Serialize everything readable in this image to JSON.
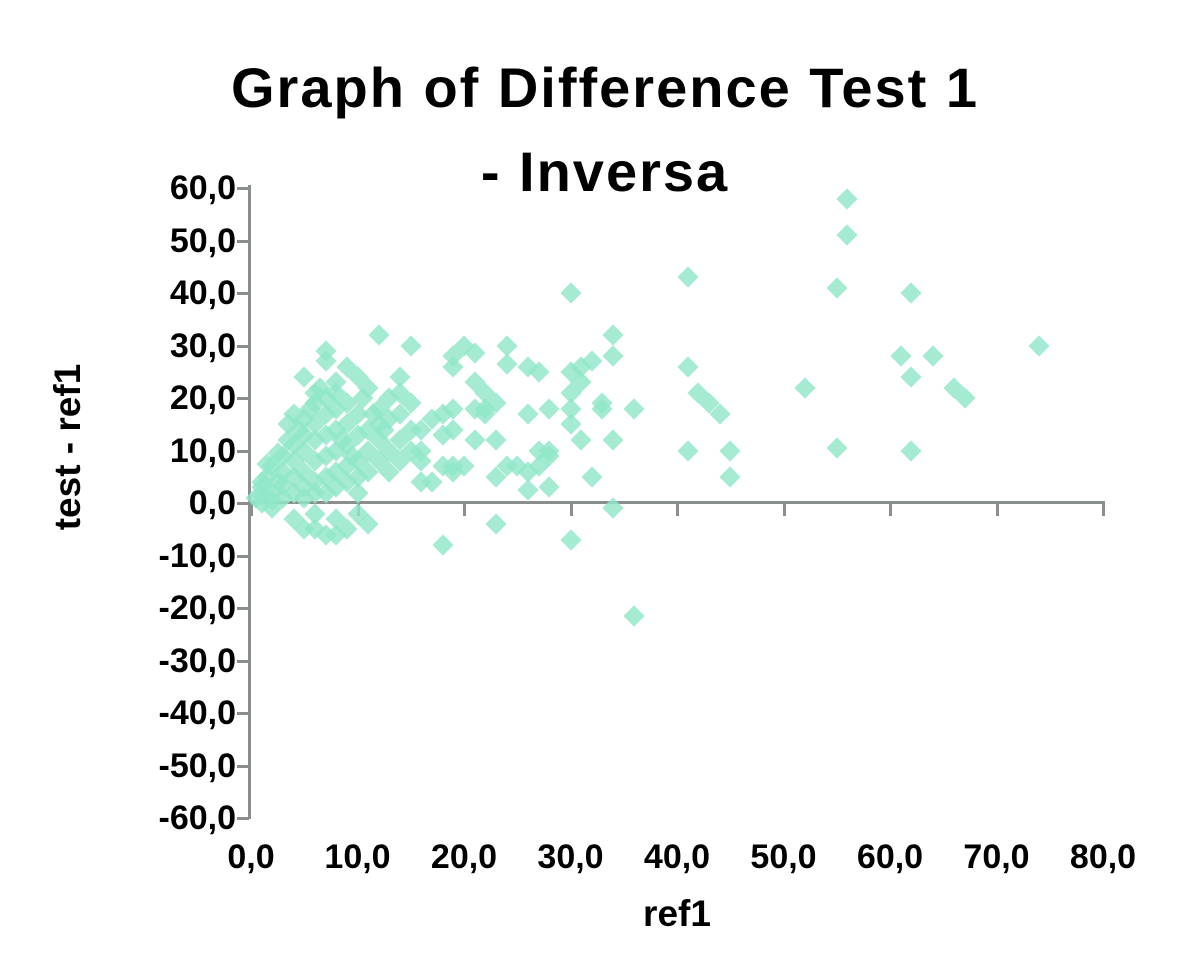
{
  "title": {
    "line1": "Graph of Difference Test 1",
    "line2": "- Inversa"
  },
  "colors": {
    "background": "#ffffff",
    "axis": "#8a8f8d",
    "marker": "#90e7c8",
    "text": "#000000"
  },
  "chart_data": {
    "type": "scatter",
    "title": "Graph of Difference Test 1 - Inversa",
    "xlabel": "ref1",
    "ylabel": "test - ref1",
    "xlim": [
      0,
      80
    ],
    "ylim": [
      -60,
      60
    ],
    "grid": false,
    "legend_position": "none",
    "marker_shape": "diamond",
    "x_ticks": [
      {
        "label": "0,0",
        "value": 0
      },
      {
        "label": "10,0",
        "value": 10
      },
      {
        "label": "20,0",
        "value": 20
      },
      {
        "label": "30,0",
        "value": 30
      },
      {
        "label": "40,0",
        "value": 40
      },
      {
        "label": "50,0",
        "value": 50
      },
      {
        "label": "60,0",
        "value": 60
      },
      {
        "label": "70,0",
        "value": 70
      },
      {
        "label": "80,0",
        "value": 80
      }
    ],
    "y_ticks": [
      {
        "label": "60,0",
        "value": 60
      },
      {
        "label": "50,0",
        "value": 50
      },
      {
        "label": "40,0",
        "value": 40
      },
      {
        "label": "30,0",
        "value": 30
      },
      {
        "label": "20,0",
        "value": 20
      },
      {
        "label": "10,0",
        "value": 10
      },
      {
        "label": "0,0",
        "value": 0
      },
      {
        "label": "-10,0",
        "value": -10
      },
      {
        "label": "-20,0",
        "value": -20
      },
      {
        "label": "-30,0",
        "value": -30
      },
      {
        "label": "-40,0",
        "value": -40
      },
      {
        "label": "-50,0",
        "value": -50
      },
      {
        "label": "-60,0",
        "value": -60
      }
    ],
    "points": [
      [
        56,
        58
      ],
      [
        56,
        51
      ],
      [
        41,
        43
      ],
      [
        55,
        41
      ],
      [
        62,
        40
      ],
      [
        30,
        40
      ],
      [
        74,
        30
      ],
      [
        61,
        28
      ],
      [
        64,
        28
      ],
      [
        62,
        24
      ],
      [
        66,
        22
      ],
      [
        67,
        20
      ],
      [
        62,
        10
      ],
      [
        55,
        10.5
      ],
      [
        52,
        22
      ],
      [
        41,
        26
      ],
      [
        42,
        21
      ],
      [
        43,
        19
      ],
      [
        44,
        17
      ],
      [
        45,
        10
      ],
      [
        45,
        5
      ],
      [
        41,
        10
      ],
      [
        34,
        32
      ],
      [
        34,
        28
      ],
      [
        32,
        27
      ],
      [
        31,
        26
      ],
      [
        30,
        25
      ],
      [
        31,
        23
      ],
      [
        30,
        21
      ],
      [
        33,
        19
      ],
      [
        36,
        18
      ],
      [
        34,
        12
      ],
      [
        30,
        15
      ],
      [
        31,
        12
      ],
      [
        33,
        18
      ],
      [
        32,
        5
      ],
      [
        28,
        18
      ],
      [
        30,
        18
      ],
      [
        28,
        10
      ],
      [
        34,
        -1
      ],
      [
        30,
        -7
      ],
      [
        36,
        -21.5
      ],
      [
        12,
        32
      ],
      [
        15,
        30
      ],
      [
        20,
        30
      ],
      [
        21,
        28.5
      ],
      [
        24,
        30
      ],
      [
        24,
        26.5
      ],
      [
        19,
        26
      ],
      [
        27,
        25
      ],
      [
        26,
        26
      ],
      [
        19,
        28
      ],
      [
        21,
        23
      ],
      [
        14,
        24
      ],
      [
        22,
        21
      ],
      [
        16,
        8
      ],
      [
        16,
        4
      ],
      [
        16,
        14
      ],
      [
        14,
        17
      ],
      [
        12,
        15
      ],
      [
        19,
        18
      ],
      [
        19,
        14
      ],
      [
        21,
        18
      ],
      [
        22,
        17
      ],
      [
        23,
        12
      ],
      [
        24,
        7
      ],
      [
        26,
        6
      ],
      [
        27,
        7
      ],
      [
        28,
        3
      ],
      [
        26,
        2.5
      ],
      [
        19,
        7
      ],
      [
        18,
        7
      ],
      [
        16,
        10
      ],
      [
        18,
        13
      ],
      [
        18,
        17
      ],
      [
        22,
        18
      ],
      [
        23,
        19
      ],
      [
        20,
        7
      ],
      [
        19,
        6
      ],
      [
        17,
        4
      ],
      [
        23,
        5
      ],
      [
        25,
        7
      ],
      [
        27,
        10
      ],
      [
        28,
        9
      ],
      [
        26,
        17
      ],
      [
        21,
        12
      ],
      [
        18,
        -8
      ],
      [
        23,
        -4
      ],
      [
        7,
        29
      ],
      [
        7,
        27
      ],
      [
        9,
        26
      ],
      [
        10,
        24
      ],
      [
        11,
        22
      ],
      [
        13,
        20
      ],
      [
        14,
        21
      ],
      [
        15,
        19
      ],
      [
        17,
        16
      ],
      [
        6,
        21
      ],
      [
        8,
        23
      ],
      [
        5,
        24
      ],
      [
        6.5,
        22
      ],
      [
        12,
        18
      ],
      [
        0.5,
        1
      ],
      [
        1,
        3
      ],
      [
        1,
        0
      ],
      [
        1.5,
        5
      ],
      [
        2,
        2
      ],
      [
        2,
        7
      ],
      [
        2.5,
        4
      ],
      [
        3,
        1
      ],
      [
        3,
        6
      ],
      [
        3,
        9
      ],
      [
        3.5,
        12
      ],
      [
        4,
        2
      ],
      [
        4,
        5
      ],
      [
        4,
        8
      ],
      [
        4,
        11
      ],
      [
        4.5,
        14
      ],
      [
        5,
        3
      ],
      [
        5,
        6
      ],
      [
        5,
        10
      ],
      [
        5,
        13
      ],
      [
        5,
        16
      ],
      [
        5,
        1
      ],
      [
        5.5,
        18
      ],
      [
        6,
        4
      ],
      [
        6,
        8
      ],
      [
        6,
        12
      ],
      [
        6,
        15
      ],
      [
        6,
        2
      ],
      [
        6,
        19
      ],
      [
        7,
        5
      ],
      [
        7,
        9
      ],
      [
        7,
        13
      ],
      [
        7,
        17
      ],
      [
        7,
        20
      ],
      [
        7,
        2
      ],
      [
        8,
        6
      ],
      [
        8,
        10
      ],
      [
        8,
        14
      ],
      [
        8,
        18
      ],
      [
        8,
        21
      ],
      [
        8,
        3
      ],
      [
        8.5,
        12
      ],
      [
        9,
        7
      ],
      [
        9,
        11
      ],
      [
        9,
        15
      ],
      [
        9,
        19
      ],
      [
        9,
        4
      ],
      [
        9.5,
        9
      ],
      [
        10,
        13
      ],
      [
        10,
        17
      ],
      [
        10,
        5
      ],
      [
        10,
        8
      ],
      [
        10,
        2
      ],
      [
        10.5,
        20
      ],
      [
        11,
        10
      ],
      [
        11,
        14
      ],
      [
        11,
        6
      ],
      [
        11.5,
        17
      ],
      [
        12,
        8
      ],
      [
        12,
        12
      ],
      [
        12.5,
        14
      ],
      [
        13,
        10
      ],
      [
        13,
        16
      ],
      [
        13,
        6
      ],
      [
        14,
        12
      ],
      [
        14,
        8
      ],
      [
        15,
        14
      ],
      [
        15,
        10
      ],
      [
        2,
        0.5
      ],
      [
        1,
        1.5
      ],
      [
        3,
        3.5
      ],
      [
        1,
        4
      ],
      [
        1.5,
        7.5
      ],
      [
        2.5,
        9.5
      ],
      [
        3.5,
        15
      ],
      [
        4,
        17
      ],
      [
        2,
        -1
      ],
      [
        4,
        -3
      ],
      [
        5,
        -5
      ],
      [
        6,
        -2
      ],
      [
        7,
        -6
      ],
      [
        8,
        -3
      ],
      [
        9,
        -5
      ],
      [
        10,
        -2
      ],
      [
        11,
        -4
      ],
      [
        6,
        -5
      ],
      [
        8,
        -6
      ]
    ]
  }
}
